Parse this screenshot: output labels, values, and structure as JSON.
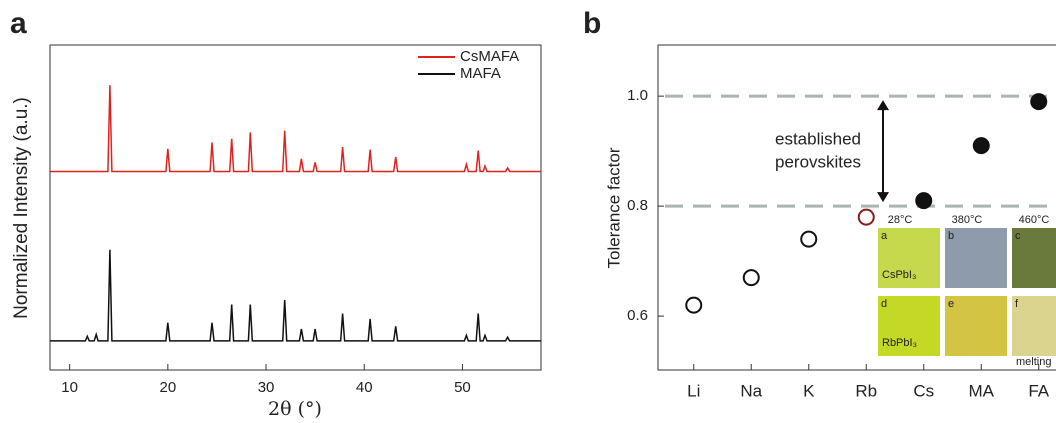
{
  "chart_data": [
    {
      "type": "line",
      "panel": "a",
      "xlabel": "2θ (°)",
      "ylabel": "Normalized Intensity (a.u.)",
      "x": [
        8,
        11.6,
        11.8,
        12.0,
        12.5,
        12.7,
        12.9,
        13.9,
        14.1,
        14.3,
        19.8,
        20,
        20.2,
        24.3,
        24.5,
        24.7,
        26.3,
        26.5,
        26.7,
        28.2,
        28.4,
        28.6,
        31.7,
        31.9,
        32.1,
        33.4,
        33.6,
        33.8,
        34.8,
        35,
        35.2,
        37.6,
        37.8,
        38.0,
        40.4,
        40.6,
        40.8,
        43.0,
        43.2,
        43.4,
        50.2,
        50.4,
        50.6,
        51.4,
        51.6,
        51.8,
        52.1,
        52.3,
        52.5,
        54.4,
        54.6,
        54.8,
        58
      ],
      "series": [
        {
          "name": "CsMAFA",
          "color": "#e0221f",
          "values": [
            1.86,
            1.86,
            1.86,
            1.86,
            1.86,
            1.86,
            1.86,
            1.86,
            2.81,
            1.86,
            1.86,
            2.11,
            1.86,
            1.86,
            2.18,
            1.86,
            1.86,
            2.22,
            1.86,
            1.86,
            2.29,
            1.86,
            1.86,
            2.31,
            1.86,
            1.86,
            2.0,
            1.86,
            1.86,
            1.96,
            1.86,
            1.86,
            2.13,
            1.86,
            1.86,
            2.1,
            1.86,
            1.86,
            2.02,
            1.86,
            1.86,
            1.94,
            1.86,
            1.86,
            2.09,
            1.86,
            1.86,
            1.92,
            1.86,
            1.86,
            1.9,
            1.86,
            1.86
          ]
        },
        {
          "name": "MAFA",
          "color": "#111111",
          "values": [
            0,
            0,
            0.05,
            0,
            0,
            0.07,
            0,
            0,
            1.0,
            0,
            0,
            0.2,
            0,
            0,
            0.2,
            0,
            0,
            0.4,
            0,
            0,
            0.4,
            0,
            0,
            0.45,
            0,
            0,
            0.13,
            0,
            0,
            0.13,
            0,
            0,
            0.3,
            0,
            0,
            0.24,
            0,
            0,
            0.16,
            0,
            0,
            0.06,
            0,
            0,
            0.3,
            0,
            0,
            0.06,
            0,
            0,
            0.04,
            0,
            0
          ]
        }
      ],
      "xlim": [
        8,
        58
      ],
      "xticks": [
        10,
        20,
        30,
        40,
        50
      ],
      "ylim": [
        -0.32,
        3.25
      ],
      "legend": "top-right"
    },
    {
      "type": "scatter",
      "panel": "b",
      "ylabel": "Tolerance factor",
      "categories": [
        "Li",
        "Na",
        "K",
        "Rb",
        "Cs",
        "MA",
        "FA"
      ],
      "values": [
        0.62,
        0.67,
        0.74,
        0.78,
        0.81,
        0.91,
        0.99
      ],
      "filled": [
        false,
        false,
        false,
        false,
        true,
        true,
        true
      ],
      "colors": [
        "#111111",
        "#111111",
        "#111111",
        "#8b1a1a",
        "#111111",
        "#111111",
        "#111111"
      ],
      "ylim": [
        0.502,
        1.093
      ],
      "yticks": [
        0.6,
        {
          "value": 0.8,
          "label": "0.8"
        },
        {
          "value": 1.0,
          "label": "1.0"
        }
      ],
      "reference_lines": [
        0.8,
        1.0
      ],
      "reference_color": "#a9b5b0",
      "annotation": [
        "established",
        "perovskites"
      ],
      "inset": {
        "temperatures": [
          "28°C",
          "380°C",
          "460°C"
        ],
        "panels": [
          "a",
          "b",
          "c",
          "d",
          "e",
          "f"
        ],
        "rows": [
          "CsPbI₃",
          "RbPbI₃"
        ],
        "note": "melting"
      }
    }
  ]
}
